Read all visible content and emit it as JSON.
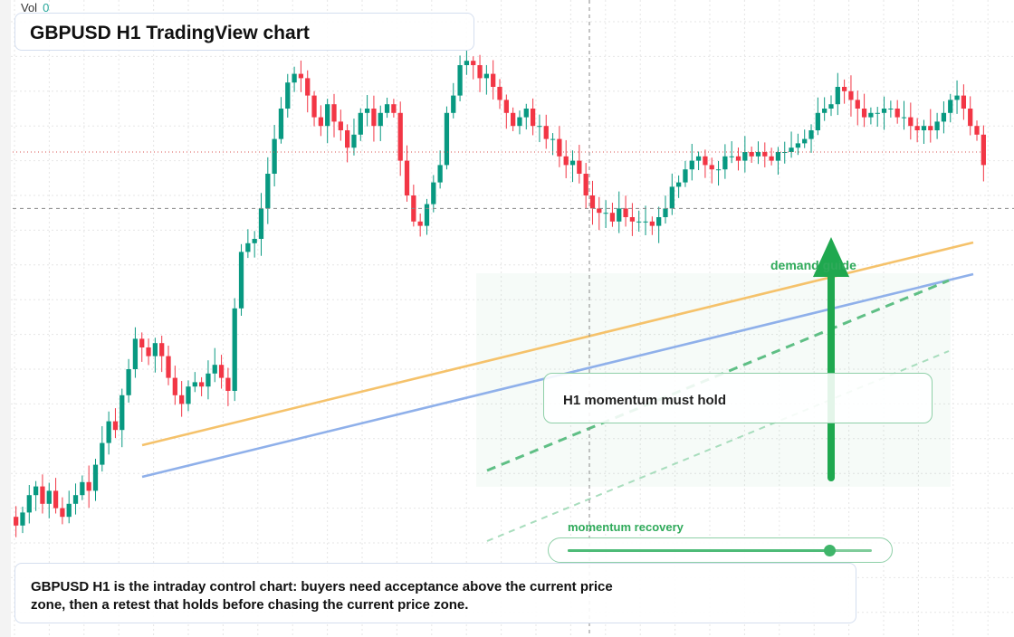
{
  "header": {
    "vol_label": "Vol",
    "vol_value": "0",
    "title": "GBPUSD H1 TradingView chart"
  },
  "annotations": {
    "callout": "H1 momentum must hold",
    "zone_label": "demand guide",
    "recovery_label": "momentum recovery",
    "recovery_progress": 0.86,
    "note": "GBPUSD H1 is the intraday control chart: buyers need acceptance above the current price zone, then a retest that holds before chasing the current price zone."
  },
  "colors": {
    "up": "#089981",
    "down": "#f23645",
    "orange_line": "#f5c26b",
    "blue_line": "#8fb0ea",
    "zone": "#2faa5a",
    "grid": "#e6e6e6",
    "price_line": "#d9534f",
    "crosshair": "#888888"
  },
  "chart_data": {
    "type": "candlestick",
    "symbol": "GBPUSD",
    "timeframe": "H1",
    "y_range": [
      0,
      100
    ],
    "close_series": [
      -6,
      -3,
      1,
      3,
      -1,
      2,
      -2,
      -4,
      -1,
      1,
      4,
      2,
      8,
      13,
      18,
      16,
      24,
      30,
      37,
      35,
      33,
      36,
      33,
      28,
      24,
      22,
      26,
      27,
      26,
      29,
      31,
      28,
      25,
      44,
      57,
      59,
      60,
      67,
      75,
      83,
      90,
      96,
      98,
      97,
      93,
      88,
      86,
      91,
      87,
      85,
      81,
      84,
      89,
      90,
      86,
      89,
      91,
      89,
      78,
      70,
      64,
      63,
      68,
      73,
      77,
      89,
      93,
      100,
      101,
      100,
      97,
      98,
      95,
      92,
      89,
      86,
      88,
      90,
      86,
      86,
      83,
      83,
      79,
      77,
      78,
      75,
      70,
      67,
      66,
      66,
      64,
      67,
      65,
      64,
      64,
      64,
      63,
      65,
      67,
      72,
      73,
      76,
      78,
      79,
      77,
      76,
      76,
      79,
      79,
      78,
      80,
      79,
      80,
      79,
      78,
      80,
      80,
      81,
      82,
      83,
      85,
      89,
      90,
      91,
      95,
      94,
      92,
      90,
      88,
      89,
      89,
      90,
      90,
      88,
      88,
      86,
      85,
      86,
      85,
      87,
      89,
      92,
      93,
      90,
      86,
      84,
      77
    ],
    "levels": {
      "price_line": 80,
      "crosshair_price": 67
    },
    "crosshair_x": 651
  }
}
